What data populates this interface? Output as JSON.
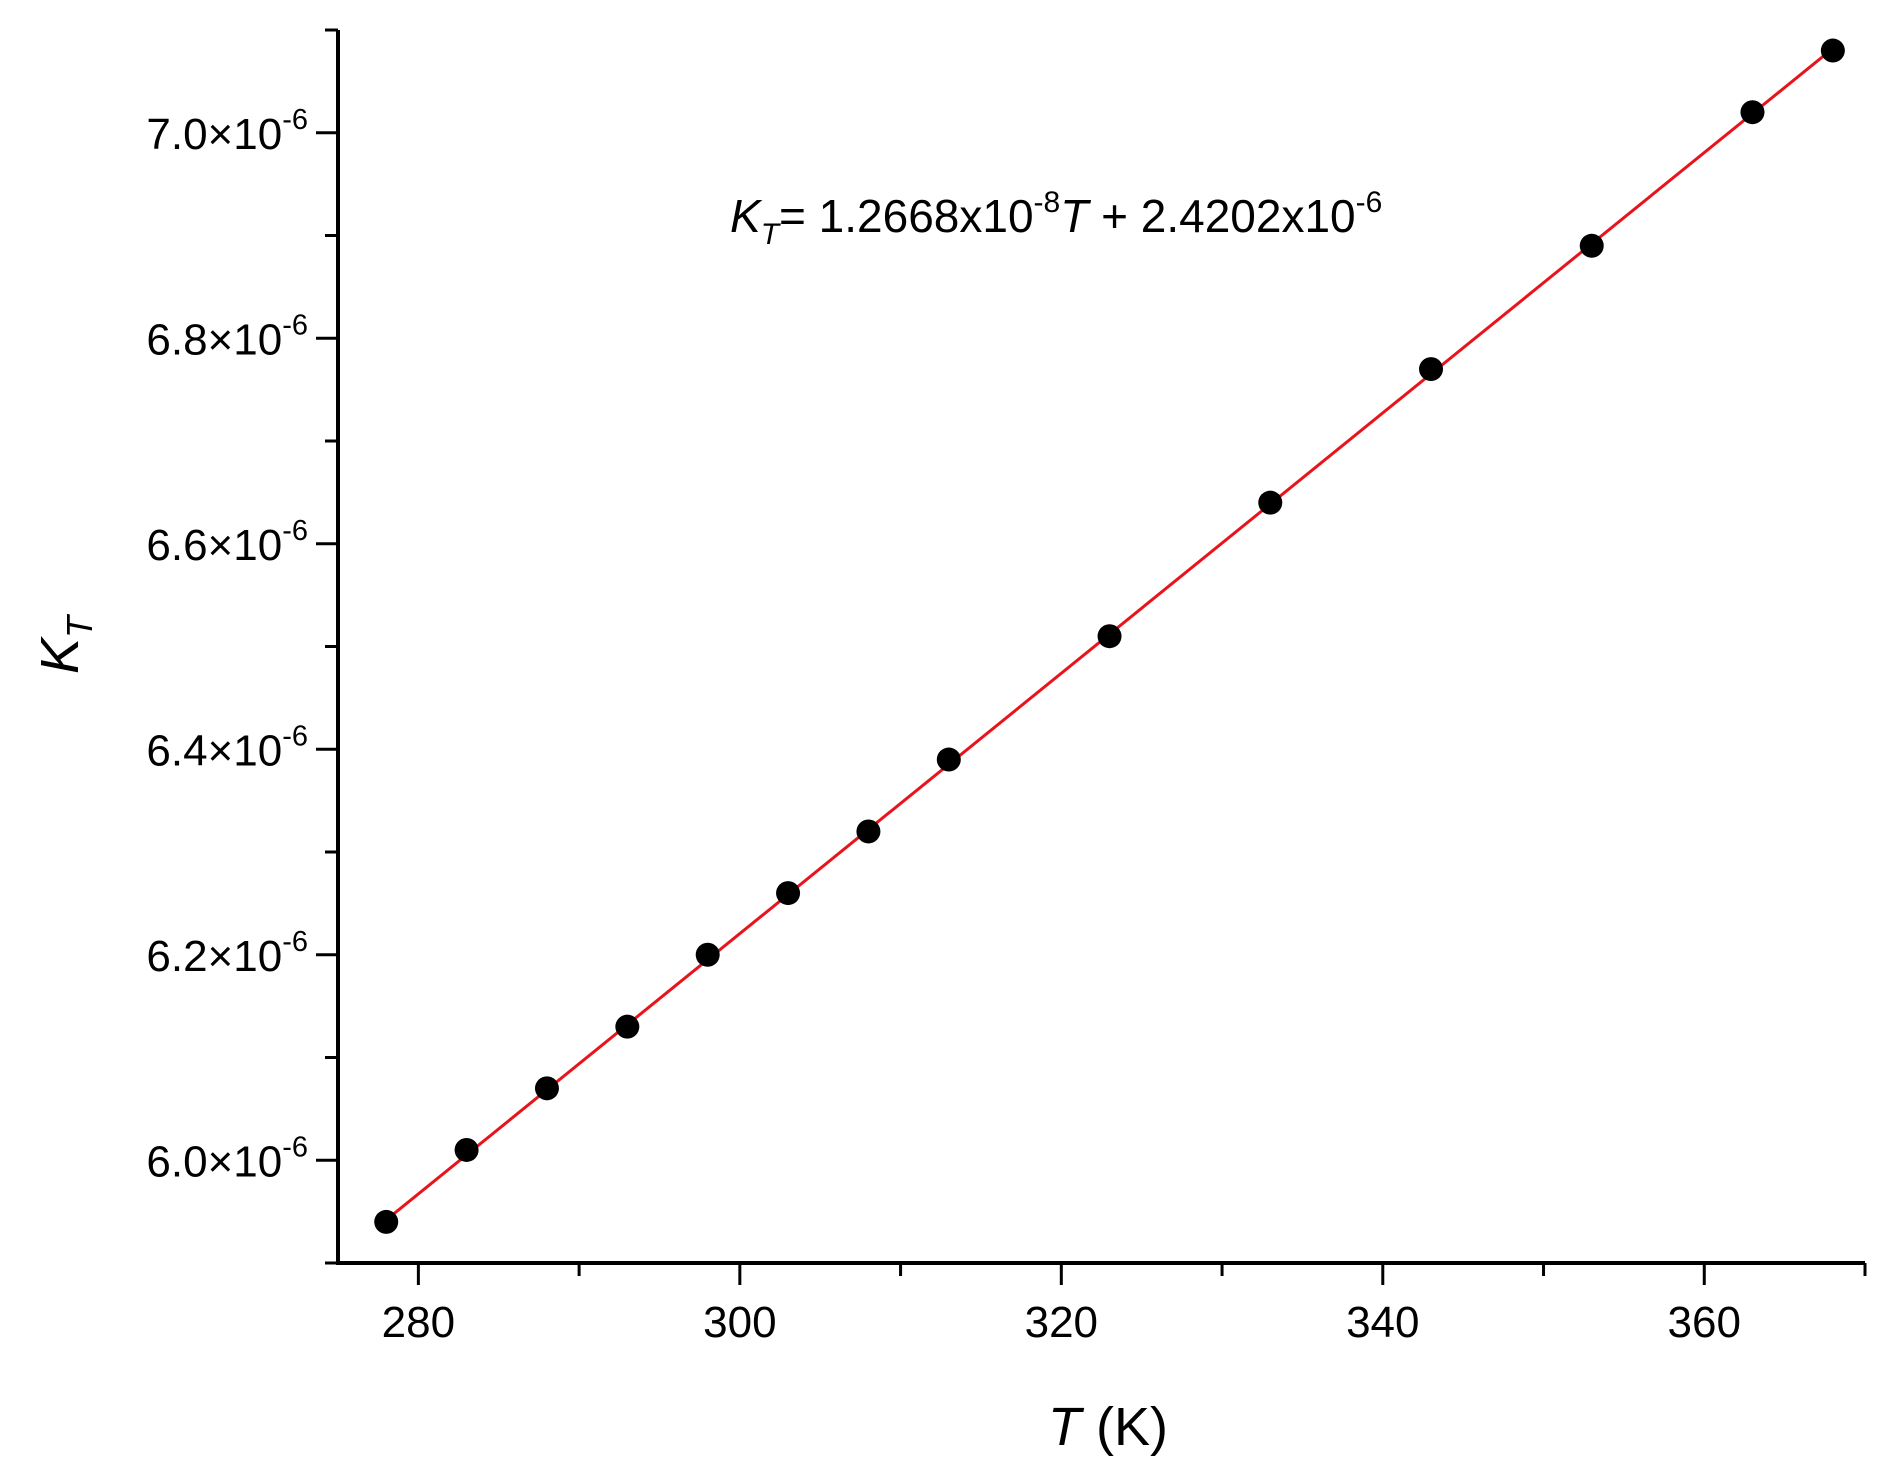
{
  "chart_data": {
    "type": "scatter",
    "xlabel": {
      "var": "T",
      "unit": " (K)"
    },
    "ylabel": {
      "var": "K",
      "sub": "T"
    },
    "xlim": [
      275,
      370
    ],
    "ylim": [
      5.9e-06,
      7.1e-06
    ],
    "x_ticks": [
      {
        "value": 280,
        "label": "280"
      },
      {
        "value": 300,
        "label": "300"
      },
      {
        "value": 320,
        "label": "320"
      },
      {
        "value": 340,
        "label": "340"
      },
      {
        "value": 360,
        "label": "360"
      }
    ],
    "y_ticks": [
      {
        "value": 6e-06,
        "mantissa": "6.0×10",
        "exp": "-6"
      },
      {
        "value": 6.2e-06,
        "mantissa": "6.2×10",
        "exp": "-6"
      },
      {
        "value": 6.4e-06,
        "mantissa": "6.4×10",
        "exp": "-6"
      },
      {
        "value": 6.6e-06,
        "mantissa": "6.6×10",
        "exp": "-6"
      },
      {
        "value": 6.8e-06,
        "mantissa": "6.8×10",
        "exp": "-6"
      },
      {
        "value": 7e-06,
        "mantissa": "7.0×10",
        "exp": "-6"
      }
    ],
    "x": [
      278,
      283,
      288,
      293,
      298,
      303,
      308,
      313,
      323,
      333,
      343,
      353,
      363,
      368
    ],
    "y": [
      5.94e-06,
      6.01e-06,
      6.07e-06,
      6.13e-06,
      6.2e-06,
      6.26e-06,
      6.32e-06,
      6.39e-06,
      6.51e-06,
      6.64e-06,
      6.77e-06,
      6.89e-06,
      7.02e-06,
      7.08e-06
    ],
    "fit": {
      "slope": 1.2668e-08,
      "intercept": 2.4202e-06,
      "color": "#e8141c",
      "equation": {
        "lhs_var": "K",
        "lhs_sub": "T",
        "part1": "= 1.2668x10",
        "exp1": "-8",
        "var": "T",
        "part2": " + 2.4202x10",
        "exp2": "-6"
      }
    },
    "marker_color": "#000000",
    "grid": false
  }
}
